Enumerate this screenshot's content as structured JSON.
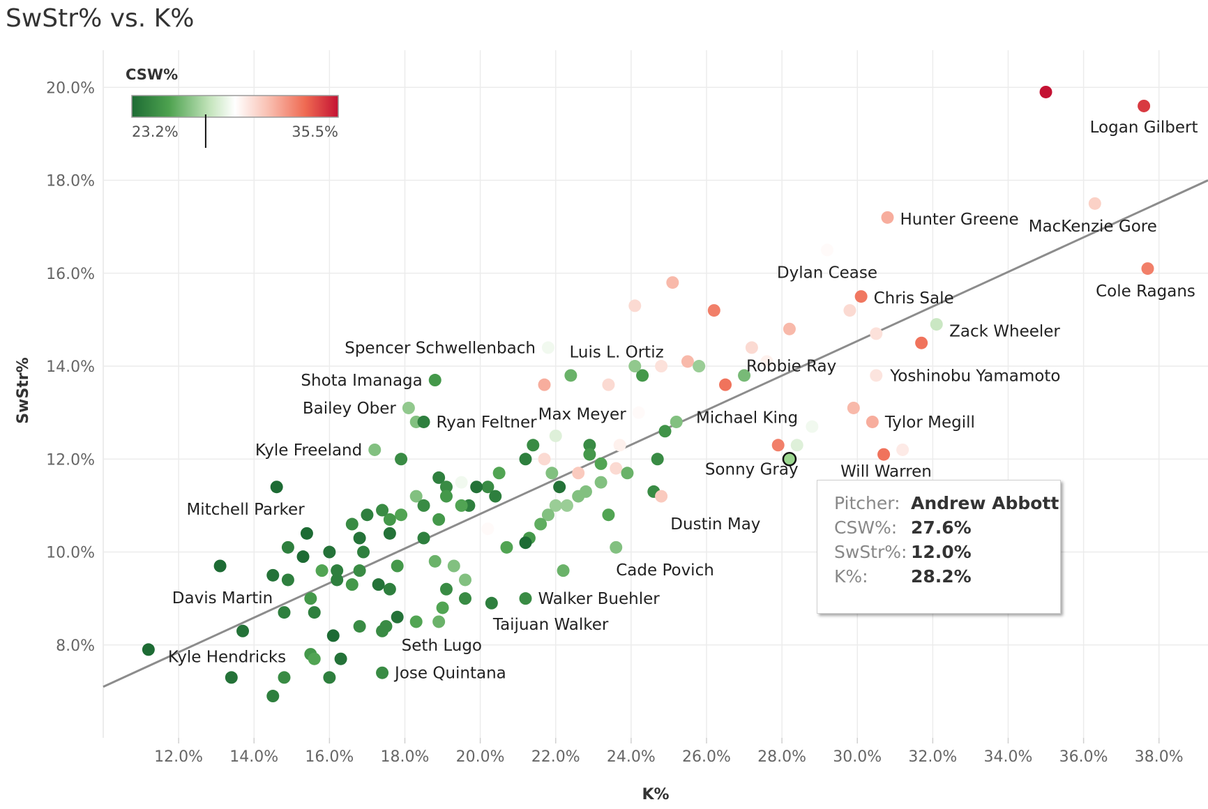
{
  "chart_data": {
    "type": "scatter",
    "title": "SwStr% vs. K%",
    "xlabel": "K%",
    "ylabel": "SwStr%",
    "xlim": [
      10.0,
      39.3
    ],
    "ylim": [
      6.0,
      20.8
    ],
    "x_ticks": [
      "12.0%",
      "14.0%",
      "16.0%",
      "18.0%",
      "20.0%",
      "22.0%",
      "24.0%",
      "26.0%",
      "28.0%",
      "30.0%",
      "32.0%",
      "34.0%",
      "36.0%",
      "38.0%"
    ],
    "x_tick_values": [
      12,
      14,
      16,
      18,
      20,
      22,
      24,
      26,
      28,
      30,
      32,
      34,
      36,
      38
    ],
    "y_ticks": [
      "8.0%",
      "10.0%",
      "12.0%",
      "14.0%",
      "16.0%",
      "18.0%",
      "20.0%"
    ],
    "y_tick_values": [
      8,
      10,
      12,
      14,
      16,
      18,
      20
    ],
    "trendline": {
      "x": [
        10.0,
        39.3
      ],
      "y": [
        7.1,
        18.0
      ]
    },
    "legend": {
      "title": "CSW%",
      "min_label": "23.2%",
      "max_label": "35.5%",
      "marker_value": 27.6,
      "min": 23.2,
      "max": 35.5
    },
    "points": [
      {
        "name": "Logan Gilbert",
        "x": 37.6,
        "y": 19.6,
        "csw": 34.6,
        "label": "Logan Gilbert",
        "anchor": "middle",
        "ldx": 0,
        "ldy": 38
      },
      {
        "name": "",
        "x": 35.0,
        "y": 19.9,
        "csw": 35.5
      },
      {
        "name": "Hunter Greene",
        "x": 30.8,
        "y": 17.2,
        "csw": 31.8,
        "label": "Hunter Greene",
        "anchor": "start",
        "ldx": 18,
        "ldy": 10
      },
      {
        "name": "MacKenzie Gore",
        "x": 36.3,
        "y": 17.5,
        "csw": 30.8,
        "label": "MacKenzie Gore",
        "anchor": "middle",
        "ldx": -3,
        "ldy": 40
      },
      {
        "name": "Cole Ragans",
        "x": 37.7,
        "y": 16.1,
        "csw": 33.0,
        "label": "Cole Ragans",
        "anchor": "middle",
        "ldx": -3,
        "ldy": 40
      },
      {
        "name": "Dylan Cease",
        "x": 29.2,
        "y": 16.5,
        "csw": 29.5,
        "label": "Dylan Cease",
        "anchor": "middle",
        "ldx": 0,
        "ldy": 40
      },
      {
        "name": "Chris Sale",
        "x": 30.1,
        "y": 15.5,
        "csw": 33.2,
        "label": "Chris Sale",
        "anchor": "start",
        "ldx": 18,
        "ldy": 10
      },
      {
        "name": "",
        "x": 29.8,
        "y": 15.2,
        "csw": 30.5
      },
      {
        "name": "Zack Wheeler",
        "x": 31.7,
        "y": 14.5,
        "csw": 33.3,
        "label": "Zack Wheeler",
        "anchor": "start",
        "ldx": 40,
        "ldy": -9
      },
      {
        "name": "",
        "x": 30.5,
        "y": 14.7,
        "csw": 30.3
      },
      {
        "name": "",
        "x": 32.1,
        "y": 14.9,
        "csw": 28.0
      },
      {
        "name": "Yoshinobu Yamamoto",
        "x": 30.5,
        "y": 13.8,
        "csw": 30.2,
        "label": "Yoshinobu Yamamoto",
        "anchor": "start",
        "ldx": 20,
        "ldy": 8
      },
      {
        "name": "",
        "x": 29.9,
        "y": 13.1,
        "csw": 31.5
      },
      {
        "name": "Tylor Megill",
        "x": 30.4,
        "y": 12.8,
        "csw": 31.8,
        "label": "Tylor Megill",
        "anchor": "start",
        "ldx": 18,
        "ldy": 8
      },
      {
        "name": "",
        "x": 31.2,
        "y": 12.2,
        "csw": 30.0
      },
      {
        "name": "Will Warren",
        "x": 30.7,
        "y": 12.1,
        "csw": 33.3,
        "label": "Will Warren",
        "anchor": "start",
        "ldx": -62,
        "ldy": 32
      },
      {
        "name": "",
        "x": 28.8,
        "y": 12.7,
        "csw": 29.0
      },
      {
        "name": "",
        "x": 28.4,
        "y": 12.3,
        "csw": 28.5
      },
      {
        "name": "Sonny Gray",
        "x": 27.9,
        "y": 12.3,
        "csw": 33.0,
        "label": "Sonny Gray",
        "anchor": "middle",
        "ldx": -38,
        "ldy": 42
      },
      {
        "name": "Andrew Abbott",
        "x": 28.2,
        "y": 12.0,
        "csw": 27.6,
        "highlight": true
      },
      {
        "name": "Robbie Ray",
        "x": 26.5,
        "y": 13.6,
        "csw": 33.3,
        "label": "Robbie Ray",
        "anchor": "start",
        "ldx": 30,
        "ldy": -19
      },
      {
        "name": "Michael King",
        "x": 27.0,
        "y": 13.8,
        "csw": 26.3,
        "label": "Michael King",
        "anchor": "middle",
        "ldx": 4,
        "ldy": 68
      },
      {
        "name": "",
        "x": 26.2,
        "y": 15.2,
        "csw": 33.0
      },
      {
        "name": "",
        "x": 25.1,
        "y": 15.8,
        "csw": 31.5
      },
      {
        "name": "",
        "x": 24.1,
        "y": 15.3,
        "csw": 30.5
      },
      {
        "name": "",
        "x": 28.2,
        "y": 14.8,
        "csw": 31.5
      },
      {
        "name": "",
        "x": 27.2,
        "y": 14.4,
        "csw": 30.5
      },
      {
        "name": "",
        "x": 27.6,
        "y": 14.1,
        "csw": 29.8
      },
      {
        "name": "",
        "x": 25.5,
        "y": 14.1,
        "csw": 31.5
      },
      {
        "name": "",
        "x": 24.8,
        "y": 14.0,
        "csw": 30.3
      },
      {
        "name": "",
        "x": 25.8,
        "y": 14.0,
        "csw": 27.0
      },
      {
        "name": "",
        "x": 24.3,
        "y": 13.8,
        "csw": 25.0
      },
      {
        "name": "",
        "x": 24.1,
        "y": 14.0,
        "csw": 26.8
      },
      {
        "name": "",
        "x": 23.4,
        "y": 13.6,
        "csw": 30.5
      },
      {
        "name": "",
        "x": 22.4,
        "y": 13.8,
        "csw": 26.0
      },
      {
        "name": "Spencer Schwellenbach",
        "x": 21.8,
        "y": 14.4,
        "csw": 29.0,
        "label": "Spencer Schwellenbach",
        "anchor": "end",
        "ldx": -18,
        "ldy": 8
      },
      {
        "name": "Luis L. Ortiz",
        "x": 21.7,
        "y": 13.6,
        "csw": 31.8,
        "label": "Luis L. Ortiz",
        "anchor": "start",
        "ldx": 36,
        "ldy": -39
      },
      {
        "name": "Max Meyer",
        "x": 24.2,
        "y": 13.0,
        "csw": 29.5,
        "label": "Max Meyer",
        "anchor": "end",
        "ldx": -18,
        "ldy": 10
      },
      {
        "name": "",
        "x": 25.2,
        "y": 12.8,
        "csw": 26.5
      },
      {
        "name": "",
        "x": 24.9,
        "y": 12.6,
        "csw": 24.8
      },
      {
        "name": "",
        "x": 24.7,
        "y": 12.0,
        "csw": 24.5
      },
      {
        "name": "",
        "x": 23.7,
        "y": 12.3,
        "csw": 29.8
      },
      {
        "name": "",
        "x": 23.6,
        "y": 11.8,
        "csw": 30.5
      },
      {
        "name": "",
        "x": 23.9,
        "y": 11.7,
        "csw": 26.0
      },
      {
        "name": "",
        "x": 22.6,
        "y": 11.7,
        "csw": 31.0
      },
      {
        "name": "",
        "x": 21.7,
        "y": 12.0,
        "csw": 30.5
      },
      {
        "name": "",
        "x": 22.0,
        "y": 12.5,
        "csw": 28.5
      },
      {
        "name": "",
        "x": 22.9,
        "y": 12.3,
        "csw": 24.5
      },
      {
        "name": "",
        "x": 22.9,
        "y": 12.1,
        "csw": 25.0
      },
      {
        "name": "",
        "x": 23.2,
        "y": 11.9,
        "csw": 25.5
      },
      {
        "name": "",
        "x": 23.2,
        "y": 11.5,
        "csw": 26.5
      },
      {
        "name": "",
        "x": 22.8,
        "y": 11.3,
        "csw": 26.5
      },
      {
        "name": "",
        "x": 21.4,
        "y": 12.3,
        "csw": 24.5
      },
      {
        "name": "",
        "x": 21.2,
        "y": 12.0,
        "csw": 24.0
      },
      {
        "name": "",
        "x": 21.9,
        "y": 11.7,
        "csw": 26.5
      },
      {
        "name": "",
        "x": 22.1,
        "y": 11.4,
        "csw": 23.5
      },
      {
        "name": "",
        "x": 22.0,
        "y": 11.0,
        "csw": 27.0
      },
      {
        "name": "",
        "x": 22.3,
        "y": 11.0,
        "csw": 27.0
      },
      {
        "name": "",
        "x": 22.6,
        "y": 11.2,
        "csw": 26.5
      },
      {
        "name": "",
        "x": 21.8,
        "y": 10.8,
        "csw": 26.5
      },
      {
        "name": "",
        "x": 23.4,
        "y": 10.8,
        "csw": 25.5
      },
      {
        "name": "",
        "x": 21.6,
        "y": 10.6,
        "csw": 25.8
      },
      {
        "name": "Dustin May",
        "x": 24.6,
        "y": 11.3,
        "csw": 24.5,
        "label": "Dustin May",
        "anchor": "start",
        "ldx": 24,
        "ldy": 54
      },
      {
        "name": "",
        "x": 24.8,
        "y": 11.2,
        "csw": 31.0
      },
      {
        "name": "Cade Povich",
        "x": 23.6,
        "y": 10.1,
        "csw": 26.5,
        "label": "Cade Povich",
        "anchor": "start",
        "ldx": 0,
        "ldy": 40
      },
      {
        "name": "",
        "x": 22.2,
        "y": 9.6,
        "csw": 26.0
      },
      {
        "name": "",
        "x": 21.3,
        "y": 10.3,
        "csw": 25.0
      },
      {
        "name": "",
        "x": 21.2,
        "y": 10.2,
        "csw": 23.2
      },
      {
        "name": "",
        "x": 20.7,
        "y": 10.1,
        "csw": 25.5
      },
      {
        "name": "",
        "x": 20.2,
        "y": 10.5,
        "csw": 29.5
      },
      {
        "name": "",
        "x": 20.5,
        "y": 11.7,
        "csw": 25.5
      },
      {
        "name": "",
        "x": 20.2,
        "y": 11.4,
        "csw": 24.5
      },
      {
        "name": "",
        "x": 20.4,
        "y": 11.2,
        "csw": 24.0
      },
      {
        "name": "",
        "x": 19.9,
        "y": 11.4,
        "csw": 23.5
      },
      {
        "name": "",
        "x": 19.5,
        "y": 11.5,
        "csw": 29.0
      },
      {
        "name": "",
        "x": 18.9,
        "y": 11.6,
        "csw": 24.0
      },
      {
        "name": "",
        "x": 19.1,
        "y": 11.4,
        "csw": 24.5
      },
      {
        "name": "",
        "x": 19.1,
        "y": 11.2,
        "csw": 25.0
      },
      {
        "name": "",
        "x": 19.7,
        "y": 11.0,
        "csw": 24.0
      },
      {
        "name": "",
        "x": 19.5,
        "y": 11.0,
        "csw": 25.5
      },
      {
        "name": "",
        "x": 18.3,
        "y": 11.2,
        "csw": 26.5
      },
      {
        "name": "",
        "x": 18.5,
        "y": 11.0,
        "csw": 24.5
      },
      {
        "name": "",
        "x": 18.9,
        "y": 10.7,
        "csw": 25.0
      },
      {
        "name": "",
        "x": 18.5,
        "y": 10.3,
        "csw": 24.0
      },
      {
        "name": "",
        "x": 17.9,
        "y": 10.8,
        "csw": 25.5
      },
      {
        "name": "",
        "x": 17.6,
        "y": 10.7,
        "csw": 25.0
      },
      {
        "name": "",
        "x": 17.4,
        "y": 10.9,
        "csw": 24.5
      },
      {
        "name": "",
        "x": 17.0,
        "y": 10.8,
        "csw": 24.0
      },
      {
        "name": "",
        "x": 16.6,
        "y": 10.6,
        "csw": 24.5
      },
      {
        "name": "",
        "x": 17.6,
        "y": 10.4,
        "csw": 23.5
      },
      {
        "name": "",
        "x": 16.8,
        "y": 10.3,
        "csw": 23.5
      },
      {
        "name": "",
        "x": 16.9,
        "y": 10.0,
        "csw": 24.0
      },
      {
        "name": "",
        "x": 18.8,
        "y": 9.8,
        "csw": 26.0
      },
      {
        "name": "",
        "x": 19.3,
        "y": 9.7,
        "csw": 26.5
      },
      {
        "name": "",
        "x": 19.6,
        "y": 9.4,
        "csw": 26.5
      },
      {
        "name": "",
        "x": 17.8,
        "y": 9.7,
        "csw": 25.0
      },
      {
        "name": "",
        "x": 16.8,
        "y": 9.6,
        "csw": 24.5
      },
      {
        "name": "",
        "x": 16.2,
        "y": 9.6,
        "csw": 24.0
      },
      {
        "name": "",
        "x": 15.8,
        "y": 9.6,
        "csw": 25.5
      },
      {
        "name": "",
        "x": 16.2,
        "y": 9.4,
        "csw": 24.0
      },
      {
        "name": "",
        "x": 16.6,
        "y": 9.3,
        "csw": 25.0
      },
      {
        "name": "",
        "x": 17.3,
        "y": 9.3,
        "csw": 23.5
      },
      {
        "name": "",
        "x": 17.6,
        "y": 9.2,
        "csw": 24.0
      },
      {
        "name": "",
        "x": 19.1,
        "y": 9.2,
        "csw": 24.5
      },
      {
        "name": "",
        "x": 19.6,
        "y": 9.0,
        "csw": 24.5
      },
      {
        "name": "",
        "x": 19.0,
        "y": 8.8,
        "csw": 25.5
      },
      {
        "name": "",
        "x": 18.9,
        "y": 8.5,
        "csw": 26.0
      },
      {
        "name": "",
        "x": 18.3,
        "y": 8.5,
        "csw": 25.5
      },
      {
        "name": "Walker Buehler",
        "x": 21.2,
        "y": 9.0,
        "csw": 24.5,
        "label": "Walker Buehler",
        "anchor": "start",
        "ldx": 18,
        "ldy": 8
      },
      {
        "name": "Taijuan Walker",
        "x": 20.3,
        "y": 8.9,
        "csw": 24.0,
        "label": "Taijuan Walker",
        "anchor": "start",
        "ldx": 2,
        "ldy": 38
      },
      {
        "name": "Seth Lugo",
        "x": 17.8,
        "y": 8.6,
        "csw": 23.5,
        "label": "Seth Lugo",
        "anchor": "start",
        "ldx": 6,
        "ldy": 48
      },
      {
        "name": "",
        "x": 17.5,
        "y": 8.4,
        "csw": 24.5
      },
      {
        "name": "",
        "x": 17.4,
        "y": 8.3,
        "csw": 24.5
      },
      {
        "name": "",
        "x": 16.8,
        "y": 8.4,
        "csw": 24.5
      },
      {
        "name": "Jose Quintana",
        "x": 17.4,
        "y": 7.4,
        "csw": 24.5,
        "label": "Jose Quintana",
        "anchor": "start",
        "ldx": 18,
        "ldy": 8
      },
      {
        "name": "",
        "x": 16.3,
        "y": 7.7,
        "csw": 23.5
      },
      {
        "name": "",
        "x": 16.0,
        "y": 7.3,
        "csw": 24.0
      },
      {
        "name": "",
        "x": 16.1,
        "y": 8.2,
        "csw": 23.2
      },
      {
        "name": "",
        "x": 15.6,
        "y": 8.7,
        "csw": 24.0
      },
      {
        "name": "",
        "x": 15.5,
        "y": 9.0,
        "csw": 25.0
      },
      {
        "name": "",
        "x": 15.5,
        "y": 7.8,
        "csw": 25.0
      },
      {
        "name": "",
        "x": 15.6,
        "y": 7.7,
        "csw": 25.5
      },
      {
        "name": "",
        "x": 14.8,
        "y": 8.7,
        "csw": 24.0
      },
      {
        "name": "",
        "x": 14.8,
        "y": 7.3,
        "csw": 24.5
      },
      {
        "name": "",
        "x": 14.5,
        "y": 6.9,
        "csw": 24.0
      },
      {
        "name": "Davis Martin",
        "x": 14.5,
        "y": 9.5,
        "csw": 23.5,
        "label": "Davis Martin",
        "anchor": "end",
        "ldx": 0,
        "ldy": 40
      },
      {
        "name": "",
        "x": 14.9,
        "y": 9.4,
        "csw": 24.0
      },
      {
        "name": "",
        "x": 14.9,
        "y": 10.1,
        "csw": 24.0
      },
      {
        "name": "",
        "x": 15.3,
        "y": 9.9,
        "csw": 23.2
      },
      {
        "name": "",
        "x": 15.4,
        "y": 10.4,
        "csw": 23.2
      },
      {
        "name": "",
        "x": 16.0,
        "y": 10.0,
        "csw": 23.5
      },
      {
        "name": "Mitchell Parker",
        "x": 14.6,
        "y": 11.4,
        "csw": 23.2,
        "label": "Mitchell Parker",
        "anchor": "end",
        "ldx": 40,
        "ldy": 40
      },
      {
        "name": "",
        "x": 13.1,
        "y": 9.7,
        "csw": 23.2
      },
      {
        "name": "",
        "x": 13.7,
        "y": 8.3,
        "csw": 23.5
      },
      {
        "name": "",
        "x": 13.4,
        "y": 7.3,
        "csw": 23.5
      },
      {
        "name": "Kyle Hendricks",
        "x": 11.2,
        "y": 7.9,
        "csw": 23.2,
        "label": "Kyle Hendricks",
        "anchor": "start",
        "ldx": 28,
        "ldy": 18
      },
      {
        "name": "Kyle Freeland",
        "x": 17.2,
        "y": 12.2,
        "csw": 26.5,
        "label": "Kyle Freeland",
        "anchor": "end",
        "ldx": -18,
        "ldy": 8
      },
      {
        "name": "",
        "x": 17.9,
        "y": 12.0,
        "csw": 24.5
      },
      {
        "name": "Bailey Ober",
        "x": 18.1,
        "y": 13.1,
        "csw": 26.8,
        "label": "Bailey Ober",
        "anchor": "end",
        "ldx": -18,
        "ldy": 8
      },
      {
        "name": "",
        "x": 18.3,
        "y": 12.8,
        "csw": 26.5
      },
      {
        "name": "Ryan Feltner",
        "x": 18.5,
        "y": 12.8,
        "csw": 24.0,
        "label": "Ryan Feltner",
        "anchor": "start",
        "ldx": 18,
        "ldy": 8
      },
      {
        "name": "Shota Imanaga",
        "x": 18.8,
        "y": 13.7,
        "csw": 25.0,
        "label": "Shota Imanaga",
        "anchor": "end",
        "ldx": -18,
        "ldy": 8
      }
    ]
  },
  "tooltip": {
    "rows": [
      {
        "key": "Pitcher:",
        "value": "Andrew Abbott"
      },
      {
        "key": "CSW%:",
        "value": "27.6%"
      },
      {
        "key": "SwStr%:",
        "value": "12.0%"
      },
      {
        "key": "K%:",
        "value": "28.2%"
      }
    ]
  }
}
